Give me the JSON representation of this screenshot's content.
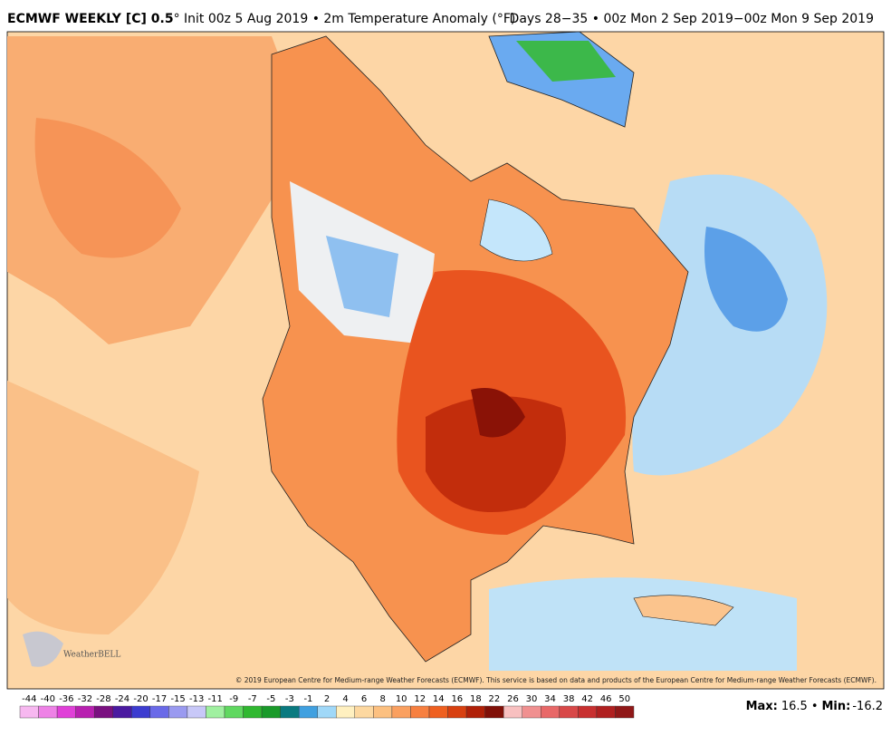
{
  "header": {
    "title_bold": "ECMWF WEEKLY [C] 0.5",
    "title_rest": "° Init 00z 5 Aug 2019 • 2m Temperature Anomaly (°F)",
    "right": "Days 28−35 • 00z Mon 2 Sep 2019−00z Mon 9 Sep 2019"
  },
  "map": {
    "copyright": "© 2019 European Centre for Medium-range Weather Forecasts (ECMWF). This service is based on data and products of the European Centre for Medium-range Weather Forecasts (ECMWF).",
    "logo": "WeatherBELL"
  },
  "colorbar": {
    "labels": [
      -44,
      -40,
      -36,
      -32,
      -28,
      -24,
      -20,
      -17,
      -15,
      -13,
      -11,
      -9,
      -7,
      -5,
      -3,
      -1,
      2,
      4,
      6,
      8,
      10,
      12,
      14,
      16,
      18,
      22,
      26,
      30,
      34,
      38,
      42,
      46,
      50
    ]
  },
  "stats": {
    "max_label": "Max:",
    "max": 16.5,
    "separator": "•",
    "min_label": "Min:",
    "min": -16.2
  }
}
